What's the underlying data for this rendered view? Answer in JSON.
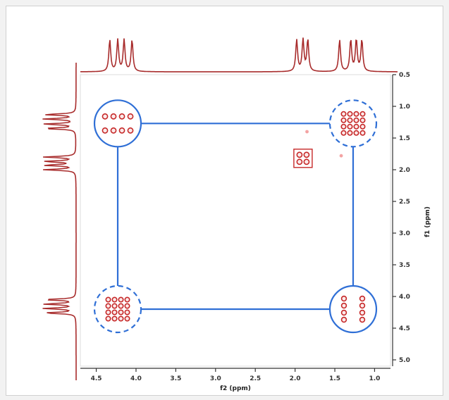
{
  "chart_data": {
    "type": "scatter",
    "title": "",
    "xlabel": "f2 (ppm)",
    "ylabel": "f1 (ppm)",
    "xlim": [
      4.7,
      0.8
    ],
    "ylim": [
      0.5,
      5.1
    ],
    "x_ticks": [
      "4.5",
      "4.0",
      "3.5",
      "3.0",
      "2.5",
      "2.0",
      "1.5",
      "1.0"
    ],
    "x_tick_values": [
      4.5,
      4.0,
      3.5,
      3.0,
      2.5,
      2.0,
      1.5,
      1.0
    ],
    "y_ticks": [
      "0.5",
      "1.0",
      "1.5",
      "2.0",
      "2.5",
      "3.0",
      "3.5",
      "4.0",
      "4.5",
      "5.0"
    ],
    "y_tick_values": [
      0.5,
      1.0,
      1.5,
      2.0,
      2.5,
      3.0,
      3.5,
      4.0,
      4.5,
      5.0
    ],
    "cross_peaks": [
      {
        "x": 4.23,
        "y": 1.27,
        "circle": "solid"
      },
      {
        "x": 1.27,
        "y": 1.27,
        "circle": "dashed"
      },
      {
        "x": 4.23,
        "y": 4.2,
        "circle": "dashed"
      },
      {
        "x": 1.27,
        "y": 4.2,
        "circle": "solid"
      },
      {
        "x": 1.9,
        "y": 1.82,
        "circle": "none"
      }
    ],
    "minor_peaks": [
      {
        "x": 1.85,
        "y": 1.4
      },
      {
        "x": 1.42,
        "y": 1.78
      }
    ],
    "projection_f2_peaks": [
      4.33,
      4.23,
      4.15,
      4.05,
      1.98,
      1.9,
      1.84,
      1.44,
      1.3,
      1.23,
      1.16
    ],
    "projection_f1_peaks": [
      1.13,
      1.2,
      1.28,
      1.35,
      1.8,
      1.87,
      1.93,
      2.0,
      4.05,
      4.12,
      4.19,
      4.26
    ],
    "colors": {
      "peak": "#c62828",
      "projection": "#a82c2c",
      "connector": "#2f6fd6",
      "axis": "#333333",
      "grid": false
    }
  }
}
